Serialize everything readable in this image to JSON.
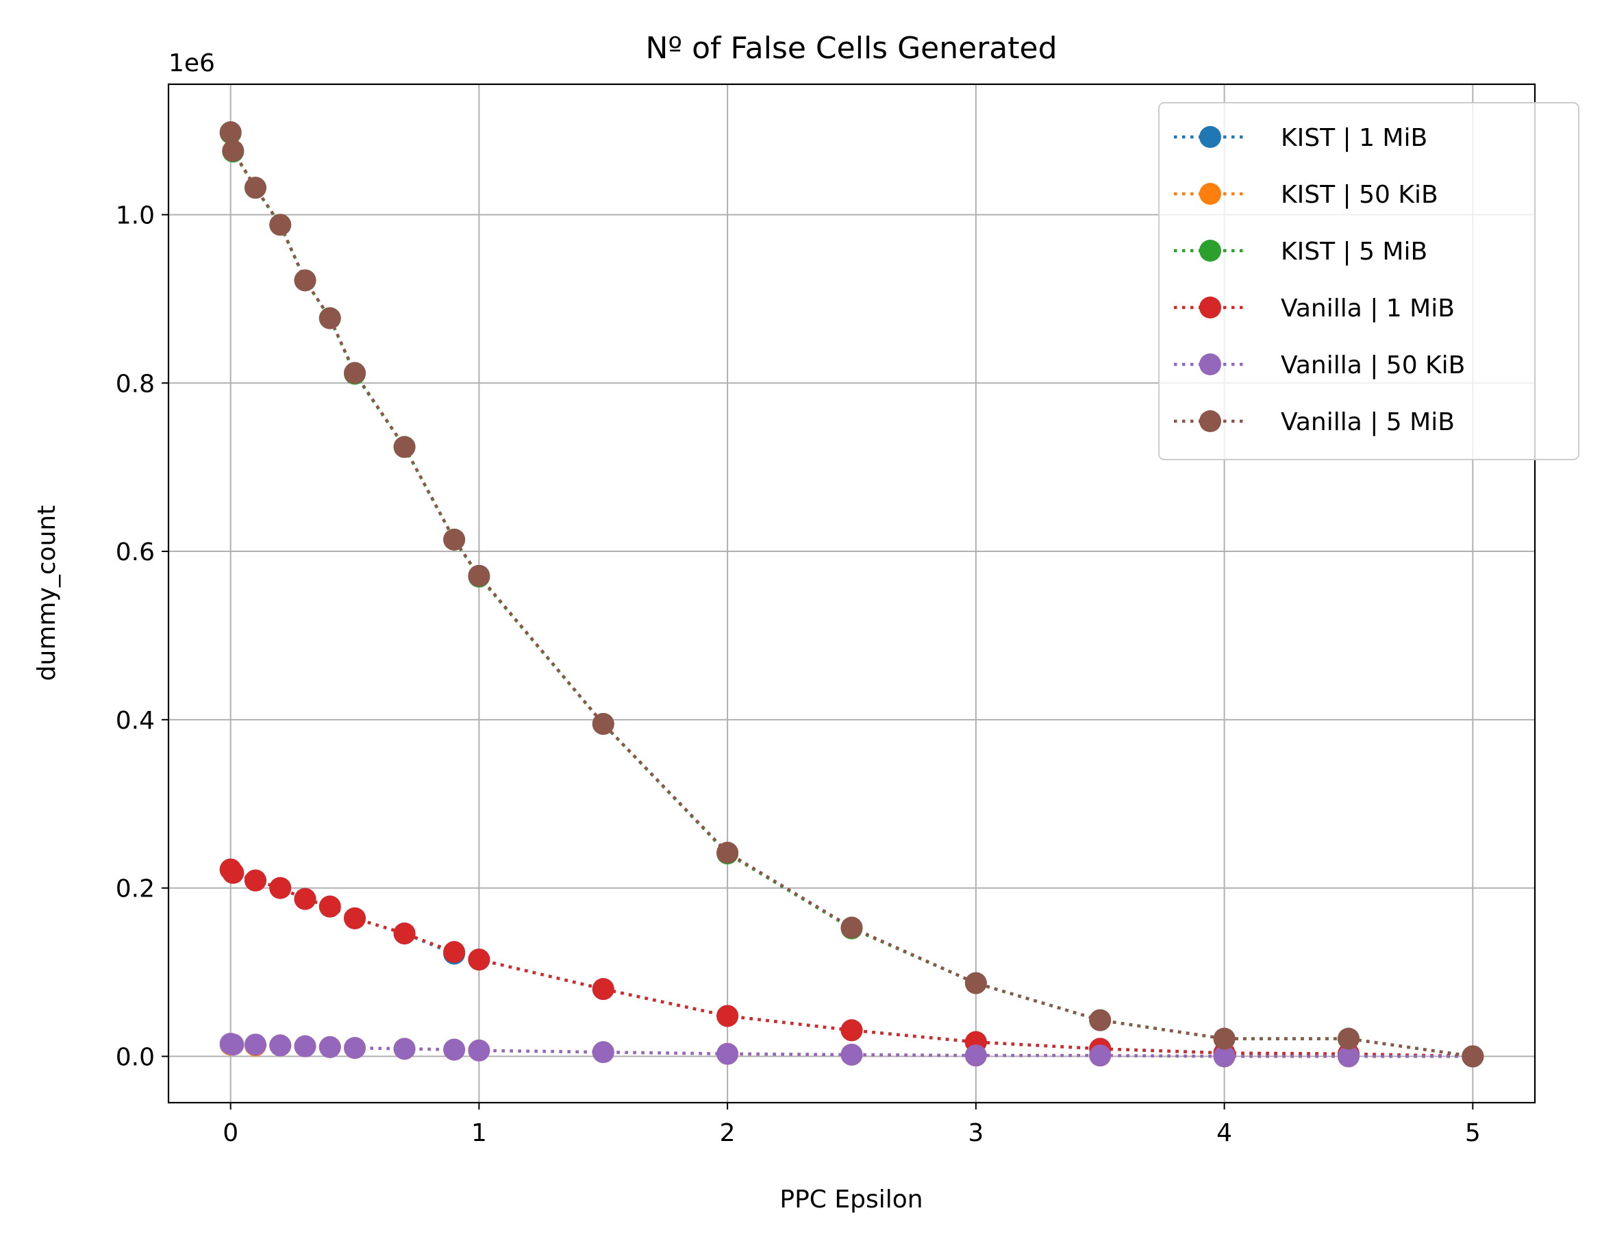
{
  "chart_data": {
    "type": "line",
    "title": "Nº of False Cells Generated",
    "xlabel": "PPC Epsilon",
    "ylabel": "dummy_count",
    "y_offset_label": "1e6",
    "xlim": [
      -0.25,
      5.25
    ],
    "ylim": [
      -0.055,
      1.155
    ],
    "x_ticks": [
      0,
      1,
      2,
      3,
      4,
      5
    ],
    "x_tick_labels": [
      "0",
      "1",
      "2",
      "3",
      "4",
      "5"
    ],
    "y_ticks": [
      0.0,
      0.2,
      0.4,
      0.6,
      0.8,
      1.0
    ],
    "y_tick_labels": [
      "0.0",
      "0.2",
      "0.4",
      "0.6",
      "0.8",
      "1.0"
    ],
    "grid": true,
    "legend_position": "top-right",
    "line_style": "dotted",
    "marker": "circle",
    "x": [
      0,
      0.01,
      0.1,
      0.2,
      0.3,
      0.4,
      0.5,
      0.7,
      0.9,
      1,
      1.5,
      2,
      2.5,
      3,
      3.5,
      4,
      4.5,
      5
    ],
    "series": [
      {
        "name": "KIST | 1 MiB",
        "color": "#1f77b4",
        "values": [
          0.222,
          0.218,
          0.209,
          0.2,
          0.187,
          0.178,
          0.164,
          0.146,
          0.122,
          0.115,
          0.08,
          0.048,
          0.031,
          0.017,
          0.009,
          0.004,
          0.002,
          0.0
        ]
      },
      {
        "name": "KIST | 50 KiB",
        "color": "#ff7f0e",
        "values": [
          0.014,
          0.014,
          0.013,
          0.013,
          0.012,
          0.011,
          0.01,
          0.009,
          0.008,
          0.007,
          0.005,
          0.003,
          0.002,
          0.001,
          0.001,
          0.0,
          0.0,
          0.0
        ]
      },
      {
        "name": "KIST | 5 MiB",
        "color": "#2ca02c",
        "values": [
          1.097,
          1.075,
          1.032,
          0.988,
          0.922,
          0.877,
          0.811,
          0.724,
          0.614,
          0.57,
          0.395,
          0.241,
          0.152,
          0.087,
          0.043,
          0.021,
          0.021,
          0.0
        ]
      },
      {
        "name": "Vanilla | 1 MiB",
        "color": "#d62728",
        "values": [
          0.222,
          0.218,
          0.209,
          0.2,
          0.187,
          0.178,
          0.164,
          0.146,
          0.124,
          0.115,
          0.08,
          0.048,
          0.031,
          0.017,
          0.009,
          0.004,
          0.003,
          0.0
        ]
      },
      {
        "name": "Vanilla | 50 KiB",
        "color": "#9467bd",
        "values": [
          0.015,
          0.014,
          0.014,
          0.013,
          0.012,
          0.011,
          0.01,
          0.009,
          0.008,
          0.007,
          0.005,
          0.003,
          0.002,
          0.001,
          0.001,
          0.0,
          0.0,
          0.0
        ]
      },
      {
        "name": "Vanilla | 5 MiB",
        "color": "#8c564b",
        "values": [
          1.098,
          1.076,
          1.032,
          0.988,
          0.922,
          0.877,
          0.812,
          0.724,
          0.614,
          0.571,
          0.395,
          0.242,
          0.153,
          0.087,
          0.043,
          0.021,
          0.021,
          0.0
        ]
      }
    ]
  }
}
